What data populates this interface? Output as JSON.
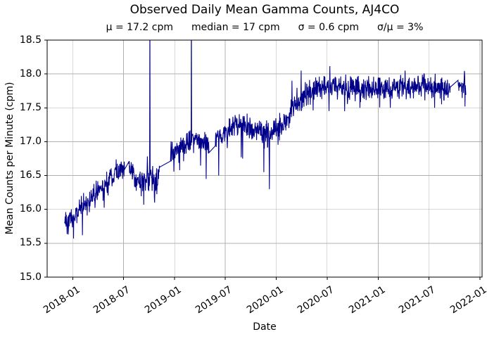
{
  "figure": {
    "background": "#ffffff"
  },
  "chart_data": {
    "type": "line",
    "title": "Observed Daily Mean Gamma Counts, AJ4CO",
    "stats_line": {
      "mu": "μ = 17.2 cpm",
      "median": "median = 17 cpm",
      "sigma": "σ = 0.6 cpm",
      "sigma_over_mu": "σ/μ = 3%"
    },
    "stats_values": {
      "mean_cpm": 17.2,
      "median_cpm": 17,
      "sigma_cpm": 0.6,
      "sigma_over_mu_pct": 3
    },
    "xlabel": "Date",
    "ylabel": "Mean Counts per Minute (cpm)",
    "ylim": [
      15.0,
      18.5
    ],
    "ytick_labels": [
      "15.0",
      "15.5",
      "16.0",
      "16.5",
      "17.0",
      "17.5",
      "18.0",
      "18.5"
    ],
    "xticks": [
      {
        "label": "2018-01",
        "date": "2018-01-01"
      },
      {
        "label": "2018-07",
        "date": "2018-07-01"
      },
      {
        "label": "2019-01",
        "date": "2019-01-01"
      },
      {
        "label": "2019-07",
        "date": "2019-07-01"
      },
      {
        "label": "2020-01",
        "date": "2020-01-01"
      },
      {
        "label": "2020-07",
        "date": "2020-07-01"
      },
      {
        "label": "2021-01",
        "date": "2021-01-01"
      },
      {
        "label": "2021-07",
        "date": "2021-07-01"
      },
      {
        "label": "2022-01",
        "date": "2022-01-01"
      }
    ],
    "grid": true,
    "legend": false,
    "line_color": "#00008B",
    "grid_color": "#b0b0b0",
    "axis_color": "#000000",
    "series": {
      "name": "observed daily mean gamma counts",
      "cadence": "daily",
      "start_date": "2017-12-02",
      "end_date": "2021-11-11",
      "noise_sigma_cpm": 0.085,
      "trend_anchors": [
        [
          "2017-12-02",
          15.85
        ],
        [
          "2017-12-28",
          15.88
        ],
        [
          "2018-01-25",
          16.0
        ],
        [
          "2018-02-20",
          16.1
        ],
        [
          "2018-03-20",
          16.22
        ],
        [
          "2018-04-20",
          16.35
        ],
        [
          "2018-05-20",
          16.45
        ],
        [
          "2018-06-15",
          16.55
        ],
        [
          "2018-07-05",
          16.62
        ],
        [
          "2018-07-25",
          16.6
        ],
        [
          "2018-08-15",
          16.48
        ],
        [
          "2018-09-08",
          16.38
        ],
        [
          "2018-09-25",
          16.48
        ],
        [
          "2018-10-12",
          16.45
        ],
        [
          "2018-10-25",
          16.4
        ],
        [
          "2018-11-08",
          16.55
        ],
        [
          "2018-12-12",
          16.85
        ],
        [
          "2019-01-15",
          16.93
        ],
        [
          "2019-02-15",
          17.0
        ],
        [
          "2019-03-15",
          17.02
        ],
        [
          "2019-04-15",
          17.02
        ],
        [
          "2019-05-05",
          16.98
        ],
        [
          "2019-05-28",
          17.08
        ],
        [
          "2019-07-01",
          17.15
        ],
        [
          "2019-08-01",
          17.22
        ],
        [
          "2019-09-01",
          17.25
        ],
        [
          "2019-10-01",
          17.22
        ],
        [
          "2019-11-01",
          17.18
        ],
        [
          "2019-12-01",
          17.12
        ],
        [
          "2020-01-01",
          17.15
        ],
        [
          "2020-01-20",
          17.22
        ],
        [
          "2020-02-10",
          17.35
        ],
        [
          "2020-03-01",
          17.52
        ],
        [
          "2020-04-01",
          17.65
        ],
        [
          "2020-05-01",
          17.75
        ],
        [
          "2020-06-01",
          17.8
        ],
        [
          "2020-09-01",
          17.8
        ],
        [
          "2021-01-01",
          17.8
        ],
        [
          "2021-05-01",
          17.8
        ],
        [
          "2021-08-01",
          17.82
        ],
        [
          "2021-09-16",
          17.75
        ],
        [
          "2021-10-14",
          17.8
        ],
        [
          "2021-11-11",
          17.82
        ]
      ],
      "anomalies": [
        [
          "2017-12-15",
          15.63
        ],
        [
          "2018-01-03",
          15.57
        ],
        [
          "2018-09-12",
          16.07
        ],
        [
          "2018-10-04",
          19.0
        ],
        [
          "2018-10-21",
          16.1
        ],
        [
          "2019-03-02",
          19.0
        ],
        [
          "2019-04-24",
          16.45
        ],
        [
          "2019-06-08",
          16.5
        ],
        [
          "2019-09-02",
          16.75
        ],
        [
          "2019-11-17",
          16.55
        ],
        [
          "2019-12-07",
          16.3
        ],
        [
          "2020-02-26",
          17.9
        ],
        [
          "2020-03-30",
          18.05
        ],
        [
          "2020-09-02",
          17.45
        ],
        [
          "2021-02-13",
          17.5
        ],
        [
          "2021-04-07",
          18.05
        ],
        [
          "2021-06-14",
          18.0
        ],
        [
          "2021-07-22",
          17.5
        ]
      ],
      "gaps": [
        [
          "2018-07-06",
          "2018-07-19"
        ],
        [
          "2018-11-10",
          "2018-12-16"
        ],
        [
          "2019-05-05",
          "2019-05-26"
        ],
        [
          "2021-09-17",
          "2021-10-13"
        ]
      ]
    }
  }
}
